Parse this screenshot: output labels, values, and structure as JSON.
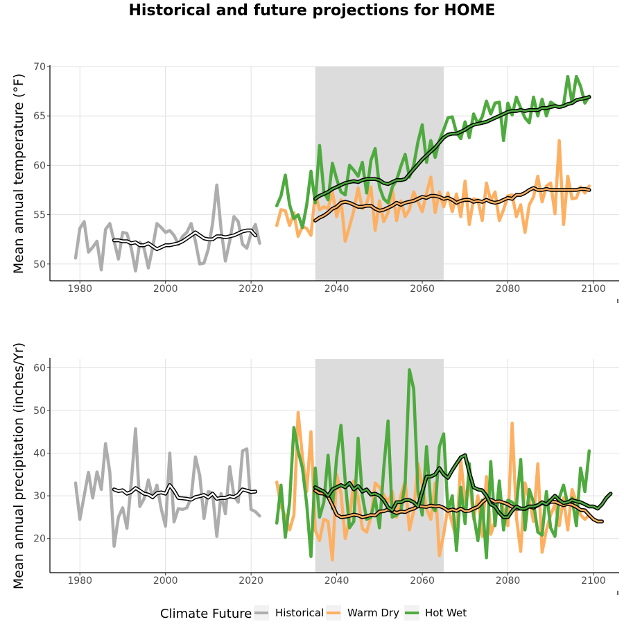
{
  "title": "Historical and future projections for HOME",
  "colors": {
    "historical": "#ADADAD",
    "warm_dry": "#FDB062",
    "hot_wet": "#4EAA3E",
    "smooth": "#000000",
    "shade": "#DCDCDC"
  },
  "legend": {
    "title": "Climate Future",
    "items": [
      {
        "label": "Historical",
        "color": "#ADADAD"
      },
      {
        "label": "Warm Dry",
        "color": "#FDB062"
      },
      {
        "label": "Hot Wet",
        "color": "#4EAA3E"
      }
    ],
    "placement": "bottom"
  },
  "chart_data": [
    {
      "type": "line",
      "title": "",
      "xlabel": "",
      "ylabel": "Mean annual temperature (°F)",
      "xlim": [
        1973,
        2106
      ],
      "ylim": [
        48.3,
        70
      ],
      "xticks": [
        1980,
        2000,
        2020,
        2040,
        2060,
        2080,
        2100
      ],
      "yticks": [
        50,
        55,
        60,
        65,
        70
      ],
      "grid": true,
      "shaded_period": [
        2035,
        2065
      ],
      "series": [
        {
          "name": "Historical",
          "color": "#ADADAD",
          "x_start": 1979,
          "values": [
            50.6,
            53.6,
            54.3,
            51.2,
            51.7,
            52.3,
            49.4,
            53.5,
            54.1,
            52.3,
            50.5,
            53.2,
            53.1,
            51.6,
            49.3,
            52.2,
            51.6,
            49.6,
            51.7,
            54.1,
            53.7,
            53.2,
            53.4,
            52.9,
            52.0,
            52.8,
            53.2,
            54.1,
            52.3,
            50.0,
            50.1,
            51.5,
            54.1,
            58.0,
            53.5,
            50.3,
            52.3,
            54.8,
            54.3,
            52.0,
            51.6,
            53.1,
            54.0,
            52.1
          ]
        },
        {
          "name": "Historical smooth",
          "color": "#000000",
          "x_start": 1988,
          "values": [
            52.4,
            52.4,
            52.3,
            52.3,
            52.1,
            52.2,
            51.9,
            51.9,
            52.1,
            51.8,
            51.5,
            51.7,
            51.9,
            51.9,
            52.0,
            52.1,
            52.3,
            52.6,
            52.9,
            53.2,
            52.9,
            52.6,
            52.5,
            52.5,
            52.8,
            52.8,
            52.7,
            52.8,
            52.9,
            53.1,
            53.3,
            53.4,
            53.4,
            52.9
          ]
        },
        {
          "name": "Warm Dry",
          "color": "#FDB062",
          "x_start": 2026,
          "values": [
            53.9,
            55.5,
            55.4,
            53.9,
            55.2,
            52.8,
            53.8,
            53.6,
            52.9,
            57.2,
            55.5,
            55.8,
            55.6,
            57.3,
            54.8,
            56.5,
            52.3,
            53.8,
            55.4,
            57.7,
            55.6,
            56.1,
            57.8,
            53.4,
            56.4,
            54.3,
            55.2,
            57.7,
            54.4,
            56.4,
            54.8,
            55.5,
            57.3,
            56.3,
            55.3,
            57.2,
            58.8,
            55.2,
            57.3,
            55.8,
            57.2,
            55.3,
            57.1,
            54.8,
            58.4,
            54.0,
            56.6,
            56.5,
            54.4,
            58.2,
            56.4,
            57.3,
            54.4,
            55.5,
            56.9,
            57.0,
            54.8,
            56.0,
            53.2,
            56.0,
            56.8,
            58.9,
            56.3,
            57.9,
            58.2,
            55.1,
            62.5,
            54.0,
            58.9,
            56.6,
            56.7,
            57.8,
            57.2,
            57.9
          ]
        },
        {
          "name": "Hot Wet",
          "color": "#4EAA3E",
          "x_start": 2026,
          "values": [
            55.9,
            56.9,
            59.0,
            56.0,
            54.6,
            55.0,
            53.7,
            56.0,
            59.4,
            56.2,
            62.0,
            57.3,
            56.5,
            60.2,
            58.6,
            57.3,
            57.0,
            60.0,
            59.5,
            58.9,
            60.3,
            57.2,
            60.5,
            61.7,
            57.8,
            56.6,
            56.2,
            57.8,
            58.5,
            59.9,
            61.1,
            58.8,
            60.0,
            62.4,
            64.1,
            60.3,
            62.5,
            60.8,
            62.5,
            63.6,
            64.8,
            64.9,
            63.3,
            62.7,
            64.4,
            62.8,
            65.2,
            64.2,
            64.9,
            66.5,
            65.2,
            66.3,
            66.4,
            62.5,
            66.3,
            65.1,
            66.9,
            65.8,
            64.8,
            64.3,
            66.9,
            65.0,
            66.7,
            65.0,
            66.4,
            66.1,
            65.9,
            66.1,
            69.0,
            66.3,
            69.0,
            68.0,
            66.3,
            67.0
          ]
        },
        {
          "name": "Warm Dry smooth",
          "color": "#000000",
          "x_start": 2035,
          "values": [
            54.4,
            54.7,
            54.9,
            55.2,
            55.6,
            55.8,
            56.2,
            56.3,
            56.2,
            56.0,
            55.8,
            55.8,
            55.9,
            55.9,
            55.6,
            55.4,
            55.5,
            55.7,
            55.9,
            56.2,
            56.0,
            56.2,
            56.3,
            56.4,
            56.6,
            56.8,
            56.7,
            56.9,
            56.9,
            56.8,
            56.6,
            56.7,
            56.5,
            56.2,
            56.4,
            56.5,
            56.5,
            56.3,
            56.4,
            56.3,
            56.5,
            56.3,
            56.2,
            56.3,
            56.5,
            56.7,
            56.6,
            57.0,
            57.0,
            57.2,
            57.5,
            57.7,
            57.5,
            57.5,
            57.6,
            57.5,
            57.5,
            57.5,
            57.5,
            57.5,
            57.5,
            57.5,
            57.6,
            57.6,
            57.5
          ]
        },
        {
          "name": "Hot Wet smooth",
          "color": "#000000",
          "x_start": 2035,
          "values": [
            56.6,
            56.9,
            57.1,
            57.3,
            57.6,
            57.8,
            58.0,
            58.2,
            58.3,
            58.4,
            58.3,
            58.5,
            58.6,
            58.6,
            58.6,
            58.5,
            58.2,
            58.1,
            58.3,
            58.5,
            58.5,
            58.6,
            59.1,
            59.6,
            60.1,
            60.6,
            61.0,
            61.4,
            61.8,
            62.3,
            62.8,
            63.1,
            63.2,
            63.2,
            63.4,
            63.6,
            63.9,
            64.1,
            64.2,
            64.3,
            64.4,
            64.6,
            64.8,
            65.0,
            65.2,
            65.4,
            65.5,
            65.5,
            65.6,
            65.5,
            65.6,
            65.6,
            65.6,
            65.8,
            65.8,
            65.9,
            66.0,
            65.9,
            66.0,
            66.2,
            66.3,
            66.6,
            66.7,
            66.8,
            66.9
          ]
        }
      ]
    },
    {
      "type": "line",
      "title": "",
      "xlabel": "",
      "ylabel": "Mean annual precipitation (inches/Yr)",
      "xlim": [
        1973,
        2106
      ],
      "ylim": [
        12,
        62
      ],
      "xticks": [
        1980,
        2000,
        2020,
        2040,
        2060,
        2080,
        2100
      ],
      "yticks": [
        20,
        30,
        40,
        50,
        60
      ],
      "grid": true,
      "shaded_period": [
        2035,
        2065
      ],
      "series": [
        {
          "name": "Historical",
          "color": "#ADADAD",
          "x_start": 1979,
          "values": [
            33.0,
            24.5,
            30.0,
            35.5,
            29.5,
            35.6,
            31.5,
            42.2,
            35.5,
            18.2,
            25.0,
            27.2,
            22.4,
            33.0,
            45.7,
            27.5,
            29.3,
            33.7,
            29.5,
            32.5,
            27.0,
            22.9,
            40.0,
            23.9,
            27.0,
            26.8,
            27.2,
            29.5,
            39.1,
            34.8,
            24.7,
            31.0,
            30.6,
            20.5,
            30.5,
            25.8,
            36.8,
            30.0,
            28.5,
            40.5,
            41.0,
            26.8,
            26.3,
            25.3
          ]
        },
        {
          "name": "Historical smooth",
          "color": "#000000",
          "x_start": 1988,
          "values": [
            31.5,
            31.1,
            31.3,
            30.5,
            30.9,
            31.8,
            31.2,
            30.5,
            30.3,
            29.7,
            30.6,
            30.8,
            30.5,
            32.5,
            31.2,
            29.5,
            29.4,
            29.3,
            29.1,
            29.7,
            29.9,
            30.2,
            29.6,
            30.5,
            29.3,
            29.5,
            29.5,
            29.9,
            29.7,
            30.3,
            31.5,
            31.2,
            30.9,
            31.0
          ]
        },
        {
          "name": "Warm Dry",
          "color": "#FDB062",
          "x_start": 2026,
          "values": [
            33.2,
            27.5,
            25.3,
            22.0,
            25.5,
            49.5,
            39.2,
            31.0,
            45.0,
            21.9,
            19.5,
            24.5,
            24.0,
            15.0,
            35.0,
            30.5,
            20.0,
            24.5,
            33.5,
            29.5,
            22.3,
            21.5,
            25.0,
            33.0,
            32.0,
            30.2,
            28.5,
            31.0,
            25.0,
            30.0,
            33.5,
            22.0,
            26.5,
            37.5,
            32.5,
            27.0,
            24.5,
            33.0,
            16.0,
            21.0,
            27.5,
            23.5,
            20.0,
            38.5,
            28.5,
            34.0,
            24.5,
            30.0,
            20.5,
            34.5,
            21.0,
            24.0,
            31.0,
            26.5,
            23.0,
            47.0,
            25.0,
            17.0,
            33.0,
            29.0,
            24.0,
            37.5,
            16.8,
            22.0,
            25.5,
            28.0,
            23.0,
            29.5,
            22.0,
            31.5,
            28.5,
            25.5,
            24.5,
            25.5
          ]
        },
        {
          "name": "Hot Wet",
          "color": "#4EAA3E",
          "x_start": 2026,
          "values": [
            23.6,
            32.5,
            20.3,
            28.5,
            46.0,
            40.5,
            36.5,
            28.0,
            15.8,
            36.5,
            25.0,
            28.5,
            39.5,
            27.0,
            39.0,
            46.5,
            33.5,
            22.5,
            24.0,
            43.5,
            30.0,
            24.5,
            25.0,
            29.5,
            22.5,
            36.5,
            47.5,
            25.0,
            25.5,
            26.5,
            33.0,
            59.5,
            55.0,
            31.0,
            25.5,
            41.5,
            28.0,
            26.5,
            41.5,
            44.5,
            26.5,
            30.0,
            17.2,
            32.0,
            23.5,
            37.5,
            25.5,
            19.5,
            29.0,
            15.5,
            38.0,
            23.0,
            33.5,
            22.0,
            29.0,
            28.5,
            27.5,
            38.5,
            22.0,
            31.5,
            28.5,
            21.5,
            20.8,
            31.0,
            22.5,
            20.5,
            29.5,
            32.5,
            28.0,
            29.5,
            23.0,
            36.5,
            31.0,
            40.5
          ]
        },
        {
          "name": "Warm Dry smooth",
          "color": "#000000",
          "x_start": 2035,
          "values": [
            31.2,
            30.6,
            30.5,
            29.8,
            27.8,
            25.6,
            25.0,
            25.1,
            25.3,
            25.6,
            25.4,
            25.0,
            25.2,
            25.5,
            25.4,
            26.3,
            26.4,
            26.8,
            26.4,
            26.0,
            26.3,
            26.2,
            26.7,
            27.0,
            27.6,
            27.5,
            27.4,
            27.7,
            27.5,
            27.6,
            27.2,
            26.5,
            26.8,
            26.5,
            27.0,
            26.4,
            26.5,
            27.0,
            27.4,
            28.5,
            29.3,
            29.1,
            28.6,
            28.7,
            28.4,
            28.0,
            27.4,
            27.0,
            27.0,
            26.9,
            27.5,
            27.2,
            27.8,
            28.3,
            28.0,
            28.6,
            28.6,
            28.2,
            27.8,
            28.1,
            27.9,
            27.4,
            26.7,
            26.6,
            25.5,
            24.5,
            24.0,
            24.0
          ]
        },
        {
          "name": "Hot Wet smooth",
          "color": "#000000",
          "x_start": 2035,
          "values": [
            32.0,
            31.5,
            31.0,
            30.0,
            31.5,
            32.0,
            32.5,
            32.0,
            33.0,
            31.5,
            32.3,
            31.0,
            31.5,
            30.3,
            30.5,
            30.0,
            29.0,
            27.3,
            26.6,
            28.5,
            28.5,
            29.0,
            29.0,
            28.5,
            27.5,
            31.0,
            34.5,
            34.5,
            35.0,
            36.5,
            35.0,
            34.2,
            36.0,
            37.5,
            39.0,
            39.5,
            35.5,
            32.0,
            31.5,
            31.3,
            30.0,
            28.0,
            27.5,
            26.0,
            25.0,
            25.0,
            26.5,
            27.5,
            27.0,
            27.0,
            27.5,
            27.5,
            27.8,
            28.5,
            28.0,
            29.0,
            30.0,
            29.0,
            28.3,
            28.5,
            29.0,
            28.7,
            28.5,
            28.0,
            27.5,
            27.5,
            27.0,
            28.0,
            29.5,
            30.5
          ]
        }
      ]
    }
  ]
}
